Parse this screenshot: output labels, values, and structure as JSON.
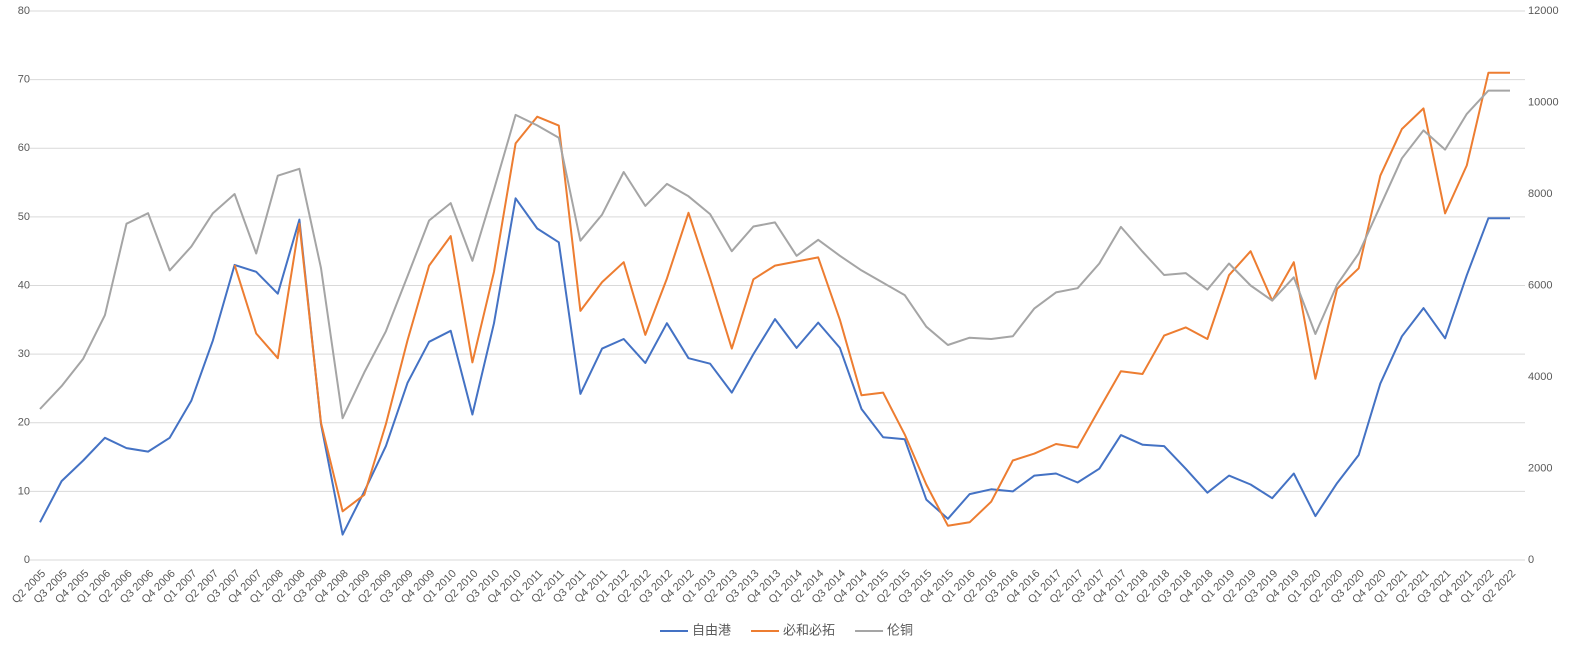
{
  "chart_data": {
    "type": "line",
    "categories": [
      "Q2 2005",
      "Q3 2005",
      "Q4 2005",
      "Q1 2006",
      "Q2 2006",
      "Q3 2006",
      "Q4 2006",
      "Q1 2007",
      "Q2 2007",
      "Q3 2007",
      "Q4 2007",
      "Q1 2008",
      "Q2 2008",
      "Q3 2008",
      "Q4 2008",
      "Q1 2009",
      "Q2 2009",
      "Q3 2009",
      "Q4 2009",
      "Q1 2010",
      "Q2 2010",
      "Q3 2010",
      "Q4 2010",
      "Q1 2011",
      "Q2 2011",
      "Q3 2011",
      "Q4 2011",
      "Q1 2012",
      "Q2 2012",
      "Q3 2012",
      "Q4 2012",
      "Q1 2013",
      "Q2 2013",
      "Q3 2013",
      "Q4 2013",
      "Q1 2014",
      "Q2 2014",
      "Q3 2014",
      "Q4 2014",
      "Q1 2015",
      "Q2 2015",
      "Q3 2015",
      "Q4 2015",
      "Q1 2016",
      "Q2 2016",
      "Q3 2016",
      "Q4 2016",
      "Q1 2017",
      "Q2 2017",
      "Q3 2017",
      "Q4 2017",
      "Q1 2018",
      "Q2 2018",
      "Q3 2018",
      "Q4 2018",
      "Q1 2019",
      "Q2 2019",
      "Q3 2019",
      "Q4 2019",
      "Q1 2020",
      "Q2 2020",
      "Q3 2020",
      "Q4 2020",
      "Q1 2021",
      "Q2 2021",
      "Q3 2021",
      "Q4 2021",
      "Q1 2022",
      "Q2 2022"
    ],
    "series": [
      {
        "name": "自由港",
        "color": "#4472c4",
        "values": [
          5.5,
          11.5,
          14.5,
          17.8,
          16.3,
          15.8,
          17.8,
          23.2,
          32,
          43,
          42,
          38.8,
          49.6,
          19.8,
          3.7,
          10,
          16.6,
          25.8,
          31.8,
          33.4,
          21.2,
          34.5,
          52.7,
          48.3,
          46.3,
          24.2,
          30.8,
          32.2,
          28.7,
          34.5,
          29.4,
          28.6,
          24.4,
          30,
          35.1,
          30.9,
          34.6,
          30.9,
          22,
          17.9,
          17.6,
          8.8,
          6,
          9.6,
          10.3,
          10,
          12.3,
          12.6,
          11.3,
          13.3,
          18.2,
          16.8,
          16.6,
          13.3,
          9.8,
          12.3,
          11,
          9,
          12.6,
          6.4,
          11.2,
          15.3,
          25.7,
          32.6,
          36.7,
          32.3,
          41.5,
          49.8,
          49.8
        ]
      },
      {
        "name": "必和必拓",
        "color": "#ed7d31",
        "values": [
          null,
          null,
          null,
          null,
          null,
          null,
          null,
          null,
          null,
          43,
          33,
          29.4,
          49,
          20,
          7.1,
          9.5,
          19.8,
          32,
          42.9,
          47.2,
          28.8,
          42,
          60.7,
          64.6,
          63.3,
          36.3,
          40.5,
          43.4,
          32.8,
          41,
          50.6,
          41,
          30.8,
          40.9,
          42.9,
          43.5,
          44.1,
          35,
          24,
          24.4,
          18.3,
          11,
          5,
          5.5,
          8.5,
          14.5,
          15.5,
          16.9,
          16.4,
          22,
          27.5,
          27.1,
          32.7,
          33.9,
          32.2,
          41.5,
          45,
          37.8,
          43.4,
          26.4,
          39.5,
          42.5,
          56,
          62.8,
          65.8,
          50.5,
          57.5,
          71,
          71
        ]
      },
      {
        "name": "伦铜",
        "color": "#a5a5a5",
        "axis": "y2",
        "values": [
          3300,
          3800,
          4400,
          5350,
          7350,
          7580,
          6330,
          6850,
          7580,
          8000,
          6700,
          8400,
          8550,
          6380,
          3100,
          4100,
          5000,
          6200,
          7420,
          7800,
          6540,
          8100,
          9730,
          9500,
          9230,
          6980,
          7550,
          8480,
          7740,
          8220,
          7950,
          7560,
          6750,
          7290,
          7380,
          6650,
          7000,
          6650,
          6330,
          6060,
          5790,
          5100,
          4700,
          4860,
          4830,
          4890,
          5500,
          5850,
          5940,
          6480,
          7280,
          6740,
          6230,
          6270,
          5910,
          6480,
          6000,
          5670,
          6180,
          4940,
          6020,
          6700,
          7740,
          8780,
          9390,
          8970,
          9750,
          10260,
          10260
        ]
      }
    ],
    "ylim": [
      0,
      80
    ],
    "yticks": [
      0,
      10,
      20,
      30,
      40,
      50,
      60,
      70,
      80
    ],
    "y2lim": [
      0,
      12000
    ],
    "y2ticks": [
      0,
      2000,
      4000,
      6000,
      8000,
      10000,
      12000
    ],
    "grid": true,
    "legend": "bottom"
  }
}
